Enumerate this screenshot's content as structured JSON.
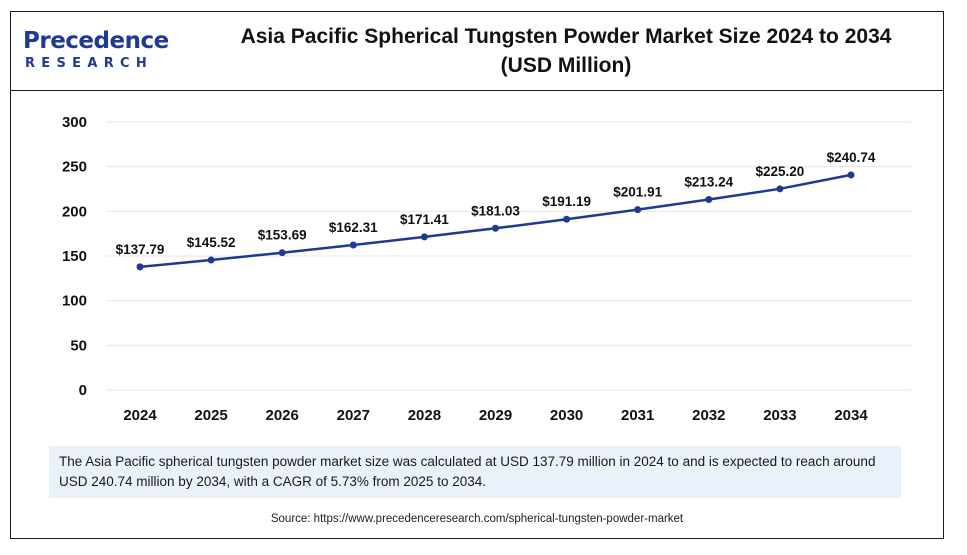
{
  "brand": {
    "name_main": "Precedence",
    "name_sub": "RESEARCH",
    "color": "#1f3a93"
  },
  "header": {
    "title_line1": "Asia Pacific Spherical Tungsten Powder Market Size 2024 to 2034",
    "title_line2": "(USD Million)"
  },
  "chart_data": {
    "type": "line",
    "title": "Asia Pacific Spherical Tungsten Powder Market Size 2024 to 2034 (USD Million)",
    "x": [
      "2024",
      "2025",
      "2026",
      "2027",
      "2028",
      "2029",
      "2030",
      "2031",
      "2032",
      "2033",
      "2034"
    ],
    "series": [
      {
        "values": [
          137.79,
          145.52,
          153.69,
          162.31,
          171.41,
          181.03,
          191.19,
          201.91,
          213.24,
          225.2,
          240.74
        ],
        "labels": [
          "$137.79",
          "$145.52",
          "$153.69",
          "$162.31",
          "$171.41",
          "$181.03",
          "$191.19",
          "$201.91",
          "$213.24",
          "$225.20",
          "$240.74"
        ],
        "color": "#1f3a93"
      }
    ],
    "yticks": [
      0,
      50,
      100,
      150,
      200,
      250,
      300
    ],
    "ylim": [
      0,
      300
    ],
    "grid": true,
    "xlabel": "",
    "ylabel": ""
  },
  "note": {
    "text": "The Asia Pacific spherical tungsten powder market size was calculated at USD 137.79 million in 2024 to and is expected to reach around USD 240.74 million by 2034, with a CAGR of 5.73% from 2025 to 2034."
  },
  "source": {
    "text": "Source: https://www.precedenceresearch.com/spherical-tungsten-powder-market"
  }
}
